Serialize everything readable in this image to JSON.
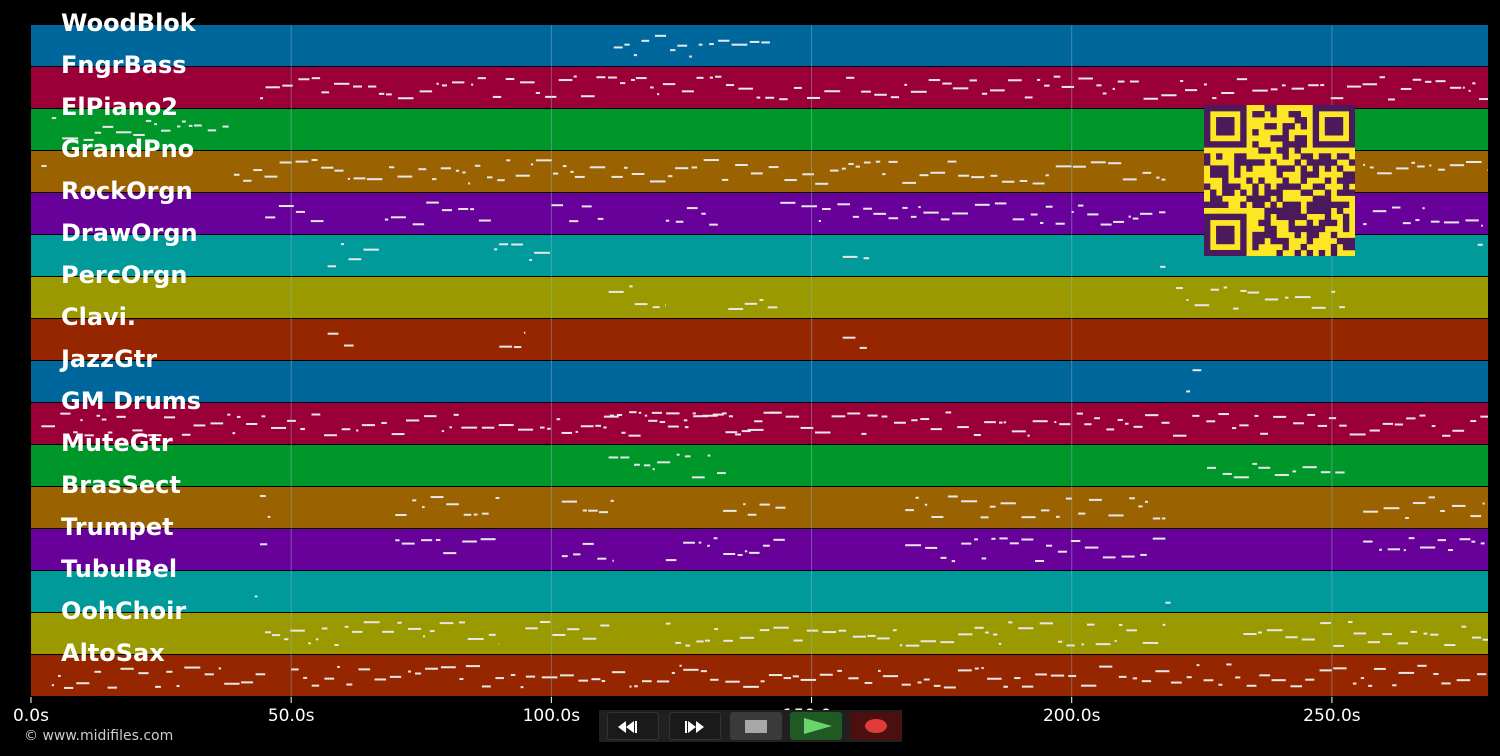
{
  "app": {
    "copyright": "© www.midifiles.com"
  },
  "colors": {
    "background": "#000000",
    "note": "#e8e8e8",
    "grid": "#8fb8c8",
    "qr_light": "#fde725",
    "qr_dark": "#4a1a5c",
    "track_palette": [
      "#00679d",
      "#9a0037",
      "#00972a",
      "#9a6200",
      "#68009a",
      "#009a9a",
      "#9a9900",
      "#962600"
    ]
  },
  "timeline": {
    "x_min": 0,
    "x_max": 280,
    "unit": "s",
    "ticks": [
      {
        "value": 0,
        "label": "0.0s"
      },
      {
        "value": 50,
        "label": "50.0s"
      },
      {
        "value": 100,
        "label": "100.0s"
      },
      {
        "value": 150,
        "label": "150.0s"
      },
      {
        "value": 200,
        "label": "200.0s"
      },
      {
        "value": 250,
        "label": "250.0s"
      }
    ]
  },
  "tracks": [
    {
      "name": "WoodBlok",
      "notes": [
        [
          112,
          142
        ]
      ]
    },
    {
      "name": "FngrBass",
      "notes": [
        [
          44,
          226
        ],
        [
          227,
          280
        ]
      ]
    },
    {
      "name": "ElPiano2",
      "notes": [
        [
          4,
          38
        ]
      ]
    },
    {
      "name": "GrandPno",
      "notes": [
        [
          2,
          3
        ],
        [
          39,
          218
        ],
        [
          256,
          280
        ]
      ]
    },
    {
      "name": "RockOrgn",
      "notes": [
        [
          45,
          57
        ],
        [
          68,
          89
        ],
        [
          100,
          110
        ],
        [
          122,
          133
        ],
        [
          144,
          218
        ],
        [
          256,
          279
        ]
      ]
    },
    {
      "name": "DrawOrgn",
      "notes": [
        [
          57,
          68
        ],
        [
          89,
          100
        ],
        [
          156,
          162
        ],
        [
          217,
          218
        ],
        [
          278,
          279
        ]
      ]
    },
    {
      "name": "PercOrgn",
      "notes": [
        [
          111,
          122
        ],
        [
          134,
          144
        ],
        [
          220,
          253
        ]
      ]
    },
    {
      "name": "Clavi.",
      "notes": [
        [
          57,
          62
        ],
        [
          90,
          95
        ],
        [
          156,
          161
        ]
      ]
    },
    {
      "name": "JazzGtr",
      "notes": [
        [
          222,
          225
        ]
      ]
    },
    {
      "name": "GM Drums",
      "notes": [
        [
          2,
          280
        ],
        [
          110,
          144
        ]
      ]
    },
    {
      "name": "MuteGtr",
      "notes": [
        [
          111,
          134
        ],
        [
          226,
          253
        ]
      ]
    },
    {
      "name": "BrasSect",
      "notes": [
        [
          44,
          46
        ],
        [
          70,
          90
        ],
        [
          102,
          112
        ],
        [
          133,
          145
        ],
        [
          168,
          218
        ],
        [
          256,
          280
        ]
      ]
    },
    {
      "name": "Trumpet",
      "notes": [
        [
          44,
          46
        ],
        [
          70,
          90
        ],
        [
          102,
          112
        ],
        [
          122,
          145
        ],
        [
          168,
          218
        ],
        [
          256,
          280
        ]
      ]
    },
    {
      "name": "TubulBel",
      "notes": [
        [
          43,
          44
        ],
        [
          218,
          219
        ]
      ]
    },
    {
      "name": "OohChoir",
      "notes": [
        [
          45,
          90
        ],
        [
          95,
          112
        ],
        [
          122,
          218
        ],
        [
          233,
          280
        ]
      ]
    },
    {
      "name": "AltoSax",
      "notes": [
        [
          4,
          45
        ],
        [
          50,
          280
        ]
      ]
    }
  ],
  "controls": {
    "rewind": "rewind-icon",
    "fast_forward": "fast-forward-icon",
    "stop": "stop-icon",
    "play": "play-icon",
    "record": "record-icon"
  }
}
